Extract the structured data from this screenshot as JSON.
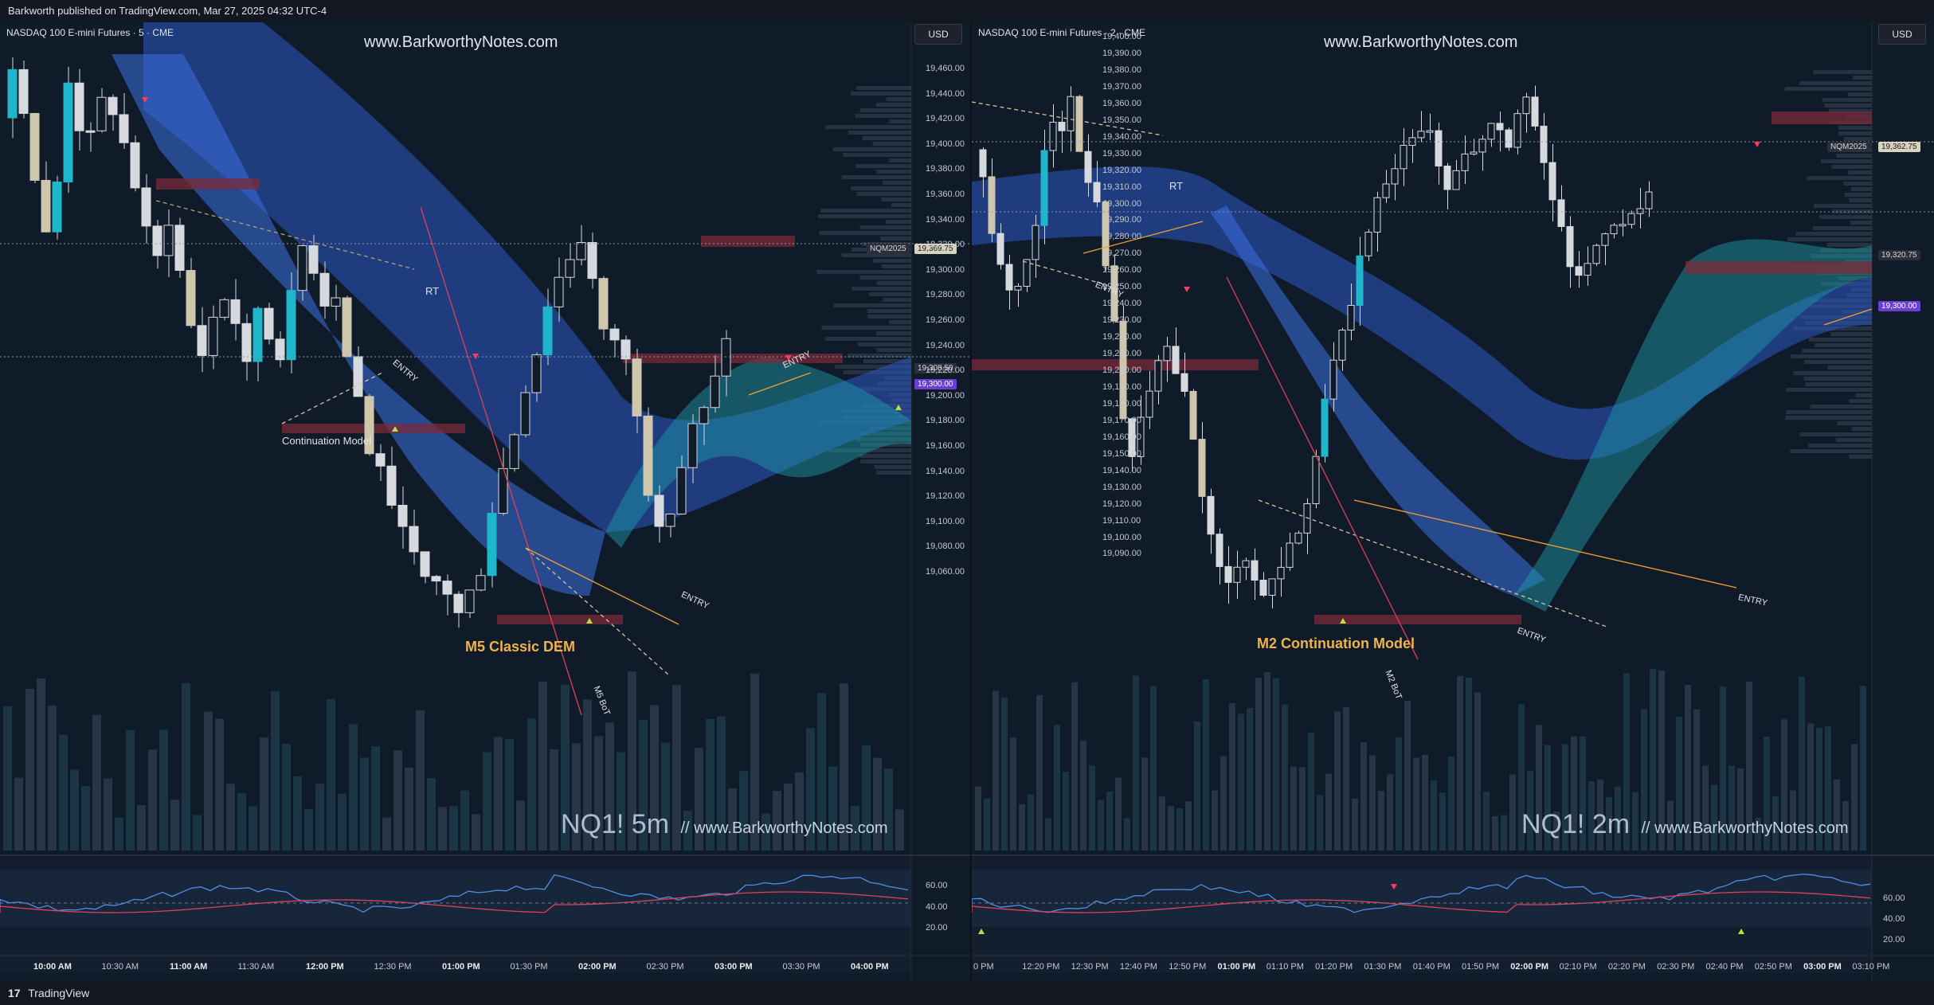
{
  "header": {
    "publish_line": "Barkworth published on TradingView.com, Mar 27, 2025 04:32 UTC-4"
  },
  "footer": {
    "brand": "TradingView",
    "logo_glyph": "17"
  },
  "colors": {
    "bg": "#0f1a26",
    "cloud": "#3d6fd6",
    "teal": "#22a7b8",
    "zone": "#7a2b3a",
    "entry": "#f0a030",
    "bos": "#e0405a",
    "signal_up": "#b8e23a",
    "signal_down": "#ff3b5c",
    "purple": "#6b3fd4"
  },
  "left": {
    "symbol": "NASDAQ 100 E-mini Futures · 5 · CME",
    "watermark_top": "www.BarkworthyNotes.com",
    "watermark_bottom_big": "NQ1! 5m",
    "watermark_bottom_small": "//  www.BarkworthyNotes.com",
    "currency": "USD",
    "price_ticks": [
      "19,460.00",
      "19,440.00",
      "19,420.00",
      "19,400.00",
      "19,380.00",
      "19,360.00",
      "19,340.00",
      "19,320.00",
      "19,300.00",
      "19,280.00",
      "19,260.00",
      "19,240.00",
      "19,220.00",
      "19,200.00",
      "19,180.00",
      "19,160.00",
      "19,140.00",
      "19,120.00",
      "19,100.00",
      "19,080.00",
      "19,060.00"
    ],
    "nqm_tag": "NQM2025",
    "nqm_price": "19,369.75",
    "price_tag": "19,308.50",
    "price_purple": "19,300.00",
    "osc_ticks": [
      "60.00",
      "40.00",
      "20.00"
    ],
    "time_labels": [
      {
        "t": "10:00 AM",
        "bold": true
      },
      {
        "t": "10:30 AM",
        "bold": false
      },
      {
        "t": "11:00 AM",
        "bold": true
      },
      {
        "t": "11:30 AM",
        "bold": false
      },
      {
        "t": "12:00 PM",
        "bold": true
      },
      {
        "t": "12:30 PM",
        "bold": false
      },
      {
        "t": "01:00 PM",
        "bold": true
      },
      {
        "t": "01:30 PM",
        "bold": false
      },
      {
        "t": "02:00 PM",
        "bold": true
      },
      {
        "t": "02:30 PM",
        "bold": false
      },
      {
        "t": "03:00 PM",
        "bold": true
      },
      {
        "t": "03:30 PM",
        "bold": false
      },
      {
        "t": "04:00 PM",
        "bold": true
      }
    ],
    "annotations": {
      "rt": "RT",
      "entry1": "ENTRY",
      "entry2": "ENTRY",
      "entry3": "ENTRY",
      "cont_model": "Continuation Model",
      "model": "M5 Classic DEM",
      "bot": "M5 BoT"
    }
  },
  "right": {
    "symbol": "NASDAQ 100 E-mini Futures · 2 · CME",
    "watermark_top": "www.BarkworthyNotes.com",
    "watermark_bottom_big": "NQ1! 2m",
    "watermark_bottom_small": "//  www.BarkworthyNotes.com",
    "currency": "USD",
    "price_ticks": [
      "19,400.00",
      "19,390.00",
      "19,380.00",
      "19,370.00",
      "19,360.00",
      "19,350.00",
      "19,340.00",
      "19,330.00",
      "19,320.00",
      "19,310.00",
      "19,300.00",
      "19,290.00",
      "19,280.00",
      "19,270.00",
      "19,260.00",
      "19,250.00",
      "19,240.00",
      "19,230.00",
      "19,220.00",
      "19,210.00",
      "19,200.00",
      "19,190.00",
      "19,180.00",
      "19,170.00",
      "19,160.00",
      "19,150.00",
      "19,140.00",
      "19,130.00",
      "19,120.00",
      "19,110.00",
      "19,100.00",
      "19,090.00"
    ],
    "nqm_tag": "NQM2025",
    "nqm_price": "19,362.75",
    "price_tag": "19,320.75",
    "price_purple": "19,300.00",
    "osc_ticks": [
      "60.00",
      "40.00",
      "20.00"
    ],
    "time_labels": [
      {
        "t": "0 PM",
        "bold": false
      },
      {
        "t": "12:20 PM",
        "bold": false
      },
      {
        "t": "12:30 PM",
        "bold": false
      },
      {
        "t": "12:40 PM",
        "bold": false
      },
      {
        "t": "12:50 PM",
        "bold": false
      },
      {
        "t": "01:00 PM",
        "bold": true
      },
      {
        "t": "01:10 PM",
        "bold": false
      },
      {
        "t": "01:20 PM",
        "bold": false
      },
      {
        "t": "01:30 PM",
        "bold": false
      },
      {
        "t": "01:40 PM",
        "bold": false
      },
      {
        "t": "01:50 PM",
        "bold": false
      },
      {
        "t": "02:00 PM",
        "bold": true
      },
      {
        "t": "02:10 PM",
        "bold": false
      },
      {
        "t": "02:20 PM",
        "bold": false
      },
      {
        "t": "02:30 PM",
        "bold": false
      },
      {
        "t": "02:40 PM",
        "bold": false
      },
      {
        "t": "02:50 PM",
        "bold": false
      },
      {
        "t": "03:00 PM",
        "bold": true
      },
      {
        "t": "03:10 PM",
        "bold": false
      }
    ],
    "annotations": {
      "rt": "RT",
      "entry1": "ENTRY",
      "entry2": "ENTRY",
      "entry3": "ENTRY",
      "model": "M2 Continuation Model",
      "bot": "M2 BoT"
    }
  }
}
